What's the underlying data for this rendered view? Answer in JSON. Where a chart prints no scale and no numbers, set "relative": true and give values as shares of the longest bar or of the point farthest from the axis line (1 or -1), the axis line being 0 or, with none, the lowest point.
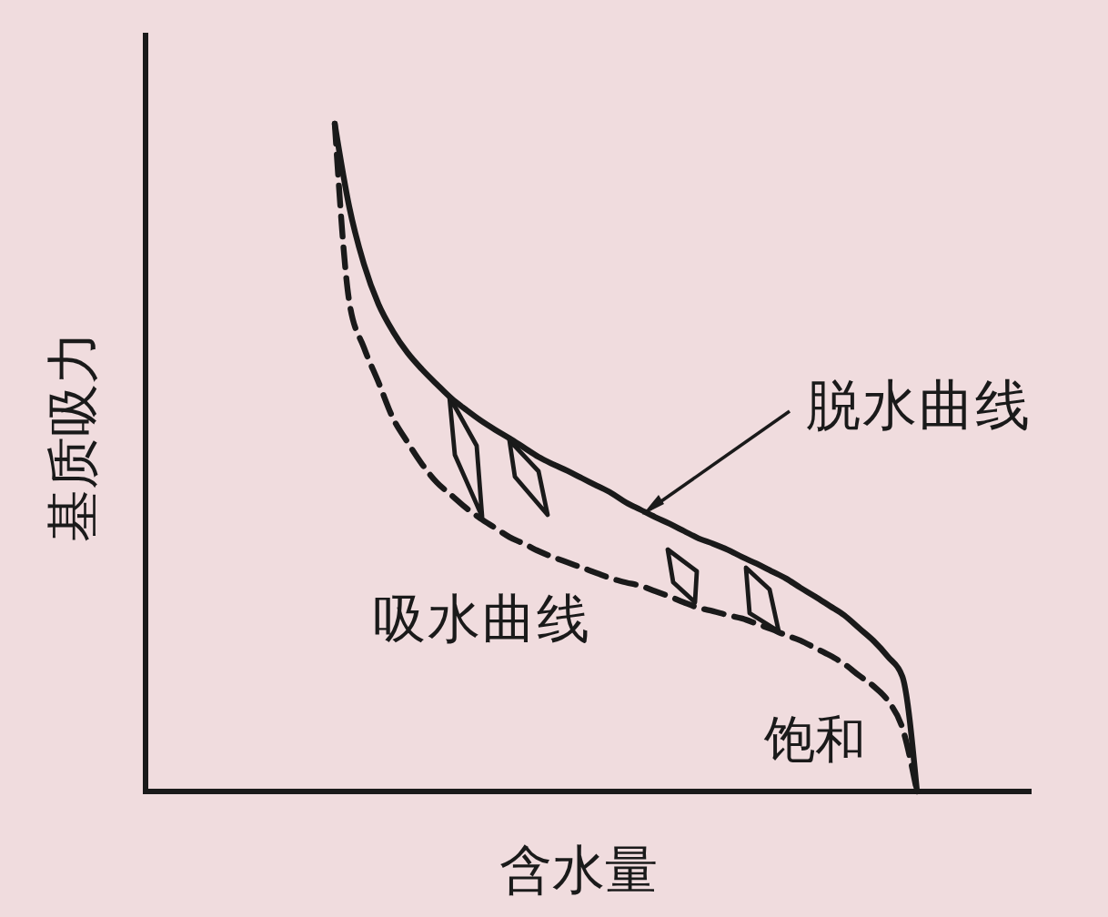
{
  "chart_data": {
    "type": "line",
    "xlabel": "含水量",
    "ylabel": "基质吸力",
    "relative": true,
    "categories": [
      null,
      null,
      null,
      null,
      null,
      null,
      null,
      null,
      null,
      null,
      null,
      null,
      null,
      null,
      null,
      null,
      null,
      null,
      null,
      null,
      null,
      null,
      null,
      null,
      null,
      null,
      null,
      null,
      null,
      null,
      null,
      null,
      null,
      null,
      null,
      null,
      null,
      null,
      null,
      null,
      null
    ],
    "series": [
      {
        "name": "脱水曲线",
        "color": "#1a1a1a",
        "line_style": "solid",
        "values": [
          1.0,
          0.875,
          0.79,
          0.73,
          0.689,
          0.657,
          0.632,
          0.61,
          0.589,
          0.572,
          0.556,
          0.542,
          0.529,
          0.515,
          0.501,
          0.49,
          0.48,
          0.469,
          0.458,
          0.447,
          0.433,
          0.422,
          0.411,
          0.401,
          0.39,
          0.379,
          0.371,
          0.362,
          0.351,
          0.341,
          0.33,
          0.319,
          0.305,
          0.292,
          0.278,
          0.264,
          0.245,
          0.226,
          0.202,
          0.172,
          0.0
        ]
      },
      {
        "name": "吸水曲线",
        "color": "#1a1a1a",
        "line_style": "dashed",
        "values": [
          1.0,
          0.733,
          0.665,
          0.613,
          0.559,
          0.523,
          0.49,
          0.463,
          0.444,
          0.425,
          0.409,
          0.395,
          0.381,
          0.371,
          0.36,
          0.351,
          0.343,
          0.335,
          0.327,
          0.319,
          0.313,
          0.308,
          0.3,
          0.292,
          0.283,
          0.275,
          0.27,
          0.264,
          0.259,
          0.251,
          0.243,
          0.234,
          0.226,
          0.215,
          0.204,
          0.191,
          0.174,
          0.158,
          0.136,
          0.095,
          0.0
        ]
      }
    ],
    "annotations": [
      "饱和"
    ]
  }
}
